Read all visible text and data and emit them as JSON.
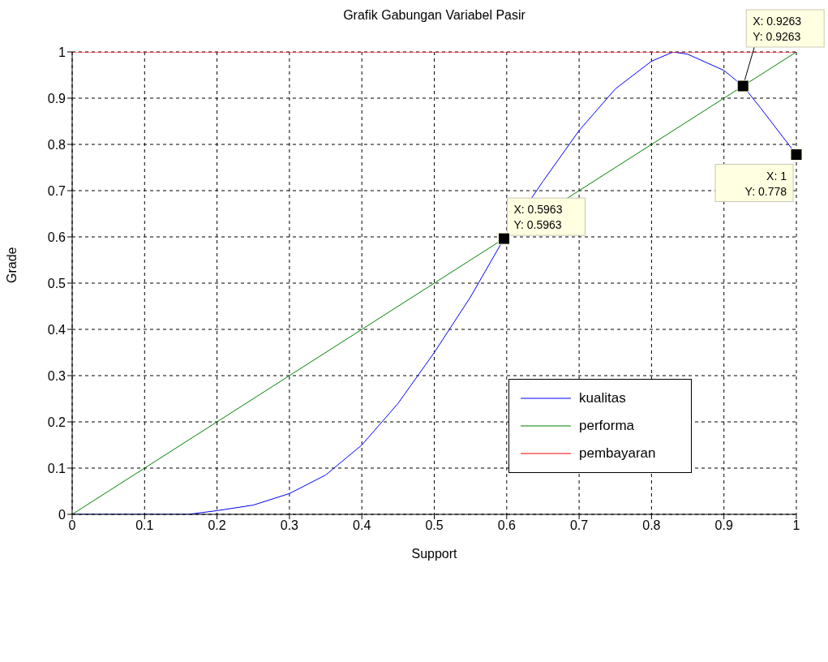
{
  "chart_data": {
    "type": "line",
    "title": "Grafik Gabungan Variabel Pasir",
    "xlabel": "Support",
    "ylabel": "Grade",
    "xlim": [
      0,
      1
    ],
    "ylim": [
      0,
      1
    ],
    "xticks": [
      0,
      0.1,
      0.2,
      0.3,
      0.4,
      0.5,
      0.6,
      0.7,
      0.8,
      0.9,
      1
    ],
    "yticks": [
      0,
      0.1,
      0.2,
      0.3,
      0.4,
      0.5,
      0.6,
      0.7,
      0.8,
      0.9,
      1
    ],
    "grid": true,
    "legend": "right",
    "line_style": "solid",
    "marker": "none",
    "series": [
      {
        "name": "kualitas",
        "color": "#0000ff",
        "x": [
          0,
          0.16,
          0.2,
          0.25,
          0.3,
          0.35,
          0.4,
          0.45,
          0.5,
          0.55,
          0.5963,
          0.65,
          0.7,
          0.75,
          0.8,
          0.83,
          0.85,
          0.9,
          0.9263,
          0.95,
          1
        ],
        "values": [
          0,
          0,
          0.008,
          0.02,
          0.045,
          0.085,
          0.15,
          0.24,
          0.35,
          0.47,
          0.5963,
          0.72,
          0.83,
          0.92,
          0.98,
          1,
          0.995,
          0.96,
          0.9263,
          0.88,
          0.778
        ]
      },
      {
        "name": "performa",
        "color": "#008000",
        "x": [
          0,
          0.5,
          1
        ],
        "values": [
          0,
          0.5,
          1
        ]
      },
      {
        "name": "pembayaran",
        "color": "#ff0000",
        "x": [
          0,
          1
        ],
        "values": [
          1,
          1
        ]
      }
    ],
    "annotations": [
      {
        "text": "X: 0.5963\nY: 0.5963",
        "x": 0.5963,
        "y": 0.5963
      },
      {
        "text": "X: 0.9263\nY: 0.9263",
        "x": 0.9263,
        "y": 0.9263
      },
      {
        "text": "X: 1\nY: 0.778",
        "x": 1,
        "y": 0.778
      }
    ]
  }
}
